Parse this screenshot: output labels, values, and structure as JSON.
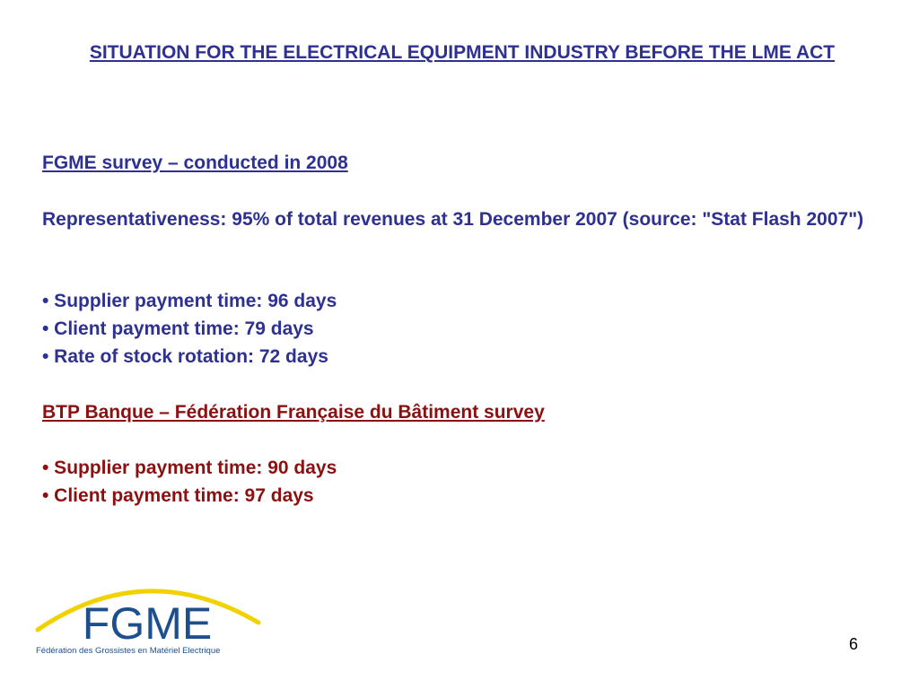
{
  "slide": {
    "title": "SITUATION FOR THE ELECTRICAL EQUIPMENT INDUSTRY BEFORE THE LME ACT",
    "fgme_survey": {
      "heading": "FGME survey – conducted in 2008",
      "representativeness": "Representativeness: 95% of total revenues at 31 December 2007 (source: \"Stat Flash 2007\")",
      "bullets": [
        "• Supplier payment time: 96 days",
        "• Client payment time: 79 days",
        "• Rate of stock rotation: 72 days"
      ]
    },
    "btp_survey": {
      "heading": "BTP Banque – Fédération Française du Bâtiment survey",
      "bullets": [
        "• Supplier payment time: 90 days",
        "• Client payment time: 97 days"
      ]
    },
    "page_number": "6"
  },
  "logo": {
    "text": "FGME",
    "subtitle": "Fédération des Grossistes en Matériel Electrique",
    "colors": {
      "arc": "#f2d100",
      "text": "#1d4f8f"
    }
  },
  "colors": {
    "blue_text": "#2e3191",
    "red_text": "#8b1111"
  }
}
